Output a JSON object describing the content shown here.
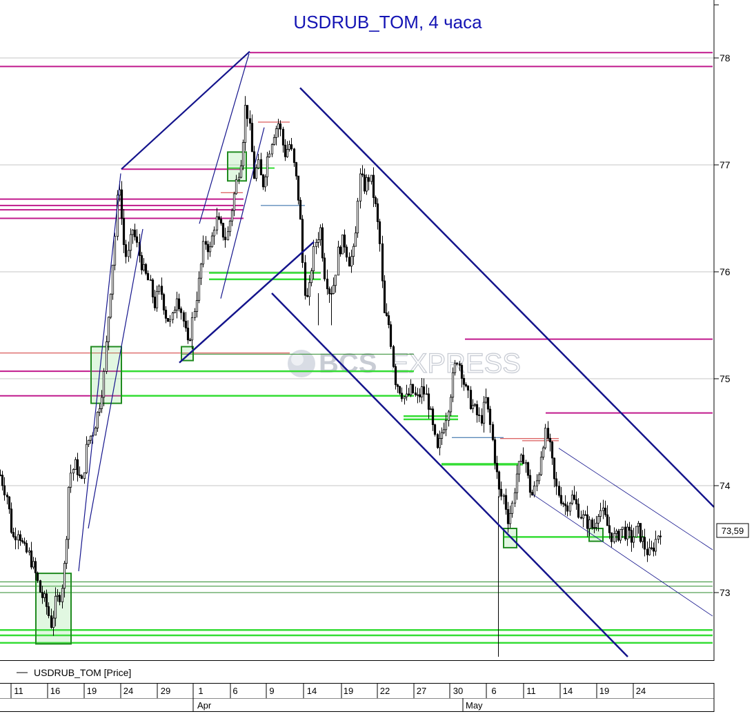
{
  "chart_data": {
    "type": "candlestick",
    "title": "USDRUB_TOM, 4 часа",
    "legend": {
      "label": "USDRUB_TOM [Price]",
      "placement": "bottom-left"
    },
    "y_axis": {
      "side": "right",
      "range": [
        72.38,
        78.5
      ],
      "ticks": [
        73,
        74,
        75,
        76,
        77,
        78
      ]
    },
    "last_value": {
      "label": "73,59",
      "value": 73.59
    },
    "x_axis": {
      "ticks": [
        "11",
        "16",
        "19",
        "24",
        "29",
        "1",
        "6",
        "9",
        "14",
        "19",
        "22",
        "27",
        "30",
        "6",
        "11",
        "14",
        "19",
        "24"
      ],
      "months": [
        "Apr",
        "May"
      ]
    },
    "watermark": [
      "BCS",
      "EXPRESS"
    ],
    "price_path": [
      [
        0,
        74.1
      ],
      [
        10,
        73.9
      ],
      [
        18,
        73.5
      ],
      [
        26,
        73.6
      ],
      [
        34,
        73.4
      ],
      [
        42,
        73.35
      ],
      [
        50,
        73.2
      ],
      [
        58,
        73.0
      ],
      [
        66,
        72.9
      ],
      [
        74,
        72.7
      ],
      [
        80,
        72.9
      ],
      [
        88,
        73.0
      ],
      [
        94,
        73.3
      ],
      [
        100,
        74.1
      ],
      [
        110,
        74.2
      ],
      [
        118,
        74.0
      ],
      [
        126,
        74.4
      ],
      [
        134,
        74.5
      ],
      [
        142,
        74.7
      ],
      [
        150,
        75.0
      ],
      [
        158,
        75.7
      ],
      [
        166,
        76.3
      ],
      [
        172,
        76.9
      ],
      [
        178,
        76.3
      ],
      [
        184,
        76.1
      ],
      [
        192,
        76.4
      ],
      [
        200,
        76.2
      ],
      [
        208,
        76.0
      ],
      [
        216,
        75.9
      ],
      [
        224,
        75.7
      ],
      [
        232,
        75.85
      ],
      [
        240,
        75.6
      ],
      [
        248,
        75.5
      ],
      [
        256,
        75.8
      ],
      [
        264,
        75.6
      ],
      [
        272,
        75.3
      ],
      [
        280,
        75.6
      ],
      [
        288,
        75.9
      ],
      [
        296,
        76.3
      ],
      [
        304,
        76.2
      ],
      [
        312,
        76.5
      ],
      [
        320,
        76.4
      ],
      [
        328,
        76.3
      ],
      [
        336,
        76.6
      ],
      [
        344,
        76.9
      ],
      [
        350,
        77.1
      ],
      [
        356,
        77.6
      ],
      [
        362,
        77.3
      ],
      [
        368,
        76.9
      ],
      [
        374,
        77.0
      ],
      [
        380,
        76.8
      ],
      [
        388,
        77.1
      ],
      [
        396,
        77.3
      ],
      [
        404,
        77.4
      ],
      [
        412,
        77.1
      ],
      [
        420,
        77.2
      ],
      [
        428,
        76.9
      ],
      [
        434,
        76.6
      ],
      [
        440,
        75.9
      ],
      [
        446,
        75.7
      ],
      [
        452,
        76.1
      ],
      [
        458,
        76.3
      ],
      [
        464,
        76.4
      ],
      [
        470,
        76.0
      ],
      [
        478,
        75.8
      ],
      [
        484,
        75.9
      ],
      [
        490,
        76.2
      ],
      [
        498,
        76.3
      ],
      [
        506,
        76.1
      ],
      [
        514,
        76.2
      ],
      [
        520,
        76.9
      ],
      [
        528,
        76.8
      ],
      [
        536,
        76.9
      ],
      [
        544,
        76.6
      ],
      [
        550,
        76.3
      ],
      [
        556,
        75.6
      ],
      [
        564,
        75.5
      ],
      [
        572,
        75.0
      ],
      [
        580,
        74.9
      ],
      [
        588,
        74.8
      ],
      [
        596,
        74.9
      ],
      [
        604,
        74.8
      ],
      [
        612,
        74.9
      ],
      [
        620,
        74.8
      ],
      [
        628,
        74.5
      ],
      [
        634,
        74.3
      ],
      [
        640,
        74.5
      ],
      [
        648,
        74.7
      ],
      [
        656,
        75.0
      ],
      [
        662,
        75.2
      ],
      [
        668,
        75.1
      ],
      [
        674,
        74.9
      ],
      [
        680,
        74.8
      ],
      [
        688,
        74.7
      ],
      [
        696,
        74.6
      ],
      [
        704,
        74.8
      ],
      [
        712,
        74.5
      ],
      [
        718,
        74.2
      ],
      [
        724,
        73.9
      ],
      [
        730,
        73.9
      ],
      [
        736,
        73.7
      ],
      [
        742,
        73.8
      ],
      [
        748,
        74.1
      ],
      [
        754,
        74.2
      ],
      [
        760,
        74.3
      ],
      [
        766,
        74.0
      ],
      [
        772,
        73.9
      ],
      [
        780,
        74.1
      ],
      [
        786,
        74.4
      ],
      [
        792,
        74.5
      ],
      [
        798,
        74.3
      ],
      [
        804,
        74.0
      ],
      [
        812,
        73.9
      ],
      [
        820,
        73.8
      ],
      [
        828,
        73.9
      ],
      [
        836,
        73.8
      ],
      [
        844,
        73.7
      ],
      [
        852,
        73.65
      ],
      [
        860,
        73.6
      ],
      [
        868,
        73.8
      ],
      [
        876,
        73.7
      ],
      [
        884,
        73.55
      ],
      [
        892,
        73.5
      ],
      [
        900,
        73.6
      ],
      [
        908,
        73.55
      ],
      [
        916,
        73.5
      ],
      [
        924,
        73.6
      ],
      [
        930,
        73.5
      ],
      [
        936,
        73.4
      ],
      [
        942,
        73.35
      ],
      [
        948,
        73.45
      ],
      [
        956,
        73.59
      ]
    ],
    "spikes": [
      {
        "x": 722,
        "high": 73.9,
        "low": 72.4
      },
      {
        "x": 461,
        "high": 75.8,
        "low": 75.5
      },
      {
        "x": 480,
        "high": 75.8,
        "low": 75.5
      }
    ],
    "trendlines_dark": [
      {
        "x1": 176,
        "y1": 76.96,
        "x2": 362,
        "y2": 78.06,
        "w": 2.2
      },
      {
        "x1": 114,
        "y1": 73.2,
        "x2": 175,
        "y2": 76.92,
        "w": 1.2
      },
      {
        "x1": 128,
        "y1": 73.6,
        "x2": 207,
        "y2": 76.4,
        "w": 1.2
      },
      {
        "x1": 289,
        "y1": 76.45,
        "x2": 361,
        "y2": 78.04,
        "w": 1.2
      },
      {
        "x1": 320,
        "y1": 75.75,
        "x2": 383,
        "y2": 77.35,
        "w": 1.2
      },
      {
        "x1": 260,
        "y1": 75.15,
        "x2": 455,
        "y2": 76.28,
        "w": 2.5
      },
      {
        "x1": 435,
        "y1": 77.72,
        "x2": 1035,
        "y2": 73.8,
        "w": 2.5
      },
      {
        "x1": 394,
        "y1": 75.8,
        "x2": 910,
        "y2": 72.4,
        "w": 2.5
      }
    ],
    "trendlines_thin": [
      {
        "x1": 810,
        "y1": 74.35,
        "x2": 1033,
        "y2": 73.4
      },
      {
        "x1": 772,
        "y1": 73.92,
        "x2": 1033,
        "y2": 72.78
      }
    ],
    "levels_magenta": [
      {
        "x1": 362,
        "x2": 1033,
        "v": 78.05
      },
      {
        "x1": 0,
        "x2": 1033,
        "v": 77.92
      },
      {
        "x1": 176,
        "x2": 353,
        "v": 76.96
      },
      {
        "x1": 0,
        "x2": 353,
        "v": 76.68
      },
      {
        "x1": 0,
        "x2": 353,
        "v": 76.62
      },
      {
        "x1": 0,
        "x2": 353,
        "v": 76.58
      },
      {
        "x1": 0,
        "x2": 353,
        "v": 76.5
      },
      {
        "x1": 0,
        "x2": 600,
        "v": 75.07
      },
      {
        "x1": 0,
        "x2": 600,
        "v": 74.84
      },
      {
        "x1": 674,
        "x2": 1033,
        "v": 75.37
      },
      {
        "x1": 791,
        "x2": 1033,
        "v": 74.68
      }
    ],
    "levels_green": [
      {
        "x1": 330,
        "x2": 398,
        "v": 76.97,
        "w": 2
      },
      {
        "x1": 303,
        "x2": 465,
        "v": 75.99,
        "w": 2.5
      },
      {
        "x1": 303,
        "x2": 465,
        "v": 75.93,
        "w": 2.5
      },
      {
        "x1": 263,
        "x2": 600,
        "v": 75.23,
        "w": 1
      },
      {
        "x1": 175,
        "x2": 600,
        "v": 75.07,
        "w": 2.5
      },
      {
        "x1": 175,
        "x2": 600,
        "v": 74.84,
        "w": 2.5
      },
      {
        "x1": 585,
        "x2": 664,
        "v": 74.65,
        "w": 2.5
      },
      {
        "x1": 585,
        "x2": 664,
        "v": 74.62,
        "w": 2.5
      },
      {
        "x1": 640,
        "x2": 758,
        "v": 74.2,
        "w": 3.5
      },
      {
        "x1": 730,
        "x2": 935,
        "v": 73.52,
        "w": 2.5
      },
      {
        "x1": 0,
        "x2": 1033,
        "v": 73.1,
        "w": 1
      },
      {
        "x1": 0,
        "x2": 1033,
        "v": 73.06,
        "w": 1
      },
      {
        "x1": 0,
        "x2": 1033,
        "v": 73.0,
        "w": 1
      },
      {
        "x1": 0,
        "x2": 1033,
        "v": 72.65,
        "w": 2.5
      },
      {
        "x1": 0,
        "x2": 1033,
        "v": 72.6,
        "w": 2.5
      },
      {
        "x1": 0,
        "x2": 1033,
        "v": 72.53,
        "w": 2.5
      }
    ],
    "levels_red_thin": [
      {
        "x1": 0,
        "x2": 420,
        "v": 75.24
      },
      {
        "x1": 320,
        "x2": 352,
        "v": 76.74
      },
      {
        "x1": 374,
        "x2": 420,
        "v": 77.4
      },
      {
        "x1": 725,
        "x2": 810,
        "v": 74.44
      },
      {
        "x1": 757,
        "x2": 810,
        "v": 74.42
      }
    ],
    "levels_blue_thin": [
      {
        "x1": 378,
        "x2": 442,
        "v": 76.62
      },
      {
        "x1": 655,
        "x2": 730,
        "v": 74.45
      }
    ],
    "boxes": [
      {
        "x1": 52,
        "x2": 103,
        "top": 73.18,
        "bottom": 72.52
      },
      {
        "x1": 132,
        "x2": 176,
        "top": 75.3,
        "bottom": 74.77
      },
      {
        "x1": 263,
        "x2": 280,
        "top": 75.3,
        "bottom": 75.17
      },
      {
        "x1": 330,
        "x2": 357,
        "top": 77.12,
        "bottom": 76.85
      },
      {
        "x1": 730,
        "x2": 749,
        "top": 73.6,
        "bottom": 73.42
      },
      {
        "x1": 854,
        "x2": 874,
        "top": 73.6,
        "bottom": 73.48
      }
    ]
  }
}
